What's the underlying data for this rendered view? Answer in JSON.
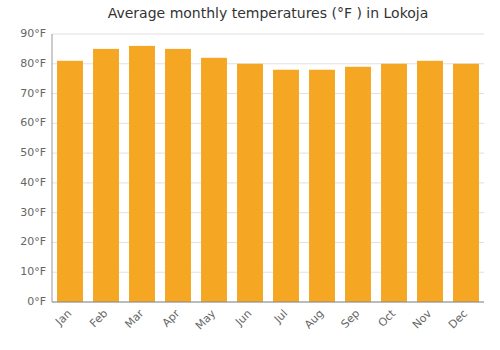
{
  "chart_data": {
    "type": "bar",
    "title": "Average monthly temperatures (°F ) in Lokoja",
    "categories": [
      "Jan",
      "Feb",
      "Mar",
      "Apr",
      "May",
      "Jun",
      "Jul",
      "Aug",
      "Sep",
      "Oct",
      "Nov",
      "Dec"
    ],
    "values": [
      81,
      85,
      86,
      85,
      82,
      80,
      78,
      78,
      79,
      80,
      81,
      80
    ],
    "color": "#F5A623",
    "ylim": [
      0,
      90
    ],
    "yticks": [
      {
        "value": 0,
        "label": "0°F"
      },
      {
        "value": 10,
        "label": "10°F"
      },
      {
        "value": 20,
        "label": "20°F"
      },
      {
        "value": 30,
        "label": "30°F"
      },
      {
        "value": 40,
        "label": "40°F"
      },
      {
        "value": 50,
        "label": "50°F"
      },
      {
        "value": 60,
        "label": "60°F"
      },
      {
        "value": 70,
        "label": "70°F"
      },
      {
        "value": 80,
        "label": "80°F"
      },
      {
        "value": 90,
        "label": "90°F"
      }
    ],
    "grid": true
  }
}
